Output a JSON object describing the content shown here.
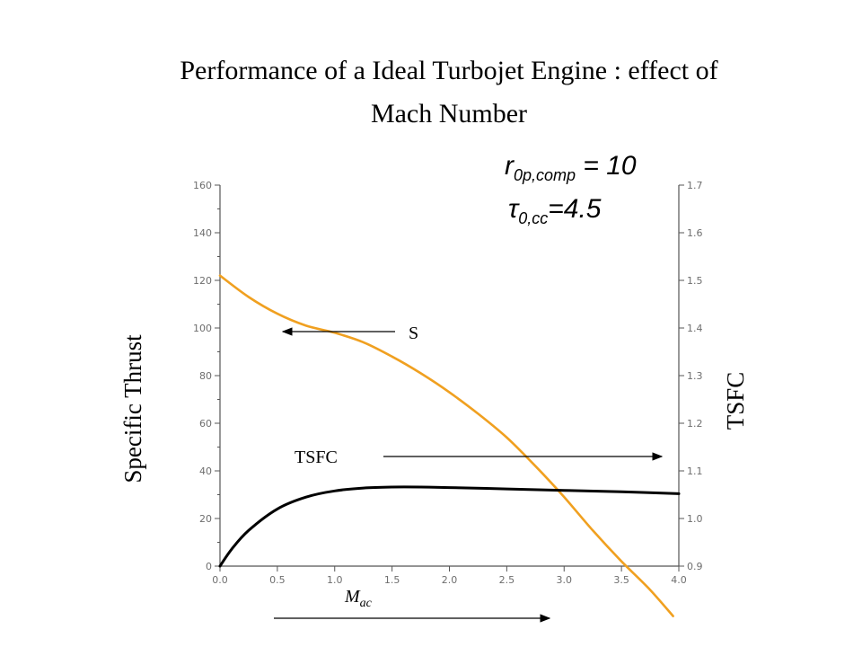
{
  "title_line1": "Performance of a Ideal Turbojet Engine : effect of",
  "title_line2": "Mach Number",
  "params": {
    "r_symbol": "r",
    "r_sub": "0p,comp",
    "r_value": " = 10",
    "tau_symbol": "τ",
    "tau_sub": "0,cc",
    "tau_value": "=4.5"
  },
  "annotations": {
    "s_label": "S",
    "tsfc_label": "TSFC",
    "mach_symbol": "M",
    "mach_sub": "ac"
  },
  "colors": {
    "thrust_curve": "#f0a020",
    "tsfc_curve": "#000000",
    "axis": "#555555"
  },
  "chart_data": {
    "type": "line",
    "title": "Performance of a Ideal Turbojet Engine : effect of Mach Number",
    "xlabel": "M_ac",
    "ylabel": "Specific Thrust",
    "y2label": "TSFC",
    "xlim": [
      0,
      4
    ],
    "ylim": [
      0,
      160
    ],
    "y2lim": [
      0.9,
      1.7
    ],
    "x_ticks": [
      "0.0",
      "0.5",
      "1.0",
      "1.5",
      "2.0",
      "2.5",
      "3.0",
      "3.5",
      "4.0"
    ],
    "y_ticks": [
      "0",
      "20",
      "40",
      "60",
      "80",
      "100",
      "120",
      "140",
      "160"
    ],
    "y2_ticks": [
      "0.9",
      "1.0",
      "1.1",
      "1.2",
      "1.3",
      "1.4",
      "1.5",
      "1.6",
      "1.7"
    ],
    "series": [
      {
        "name": "S",
        "axis": "left",
        "color": "#f0a020",
        "x": [
          0.0,
          0.25,
          0.5,
          0.75,
          1.0,
          1.25,
          1.5,
          1.75,
          2.0,
          2.25,
          2.5,
          2.75,
          3.0,
          3.25,
          3.5,
          3.75,
          3.95
        ],
        "y": [
          122,
          113,
          106,
          101,
          98,
          94,
          88,
          81,
          73,
          64,
          54,
          42,
          29,
          15,
          2,
          -10,
          -21
        ]
      },
      {
        "name": "TSFC",
        "axis": "right",
        "color": "#000000",
        "x": [
          0.0,
          0.1,
          0.25,
          0.5,
          0.75,
          1.0,
          1.25,
          1.5,
          1.75,
          2.0,
          2.5,
          3.0,
          3.5,
          4.0
        ],
        "y": [
          0.9,
          0.935,
          0.975,
          1.02,
          1.045,
          1.058,
          1.064,
          1.066,
          1.066,
          1.065,
          1.062,
          1.059,
          1.056,
          1.052
        ]
      }
    ]
  }
}
